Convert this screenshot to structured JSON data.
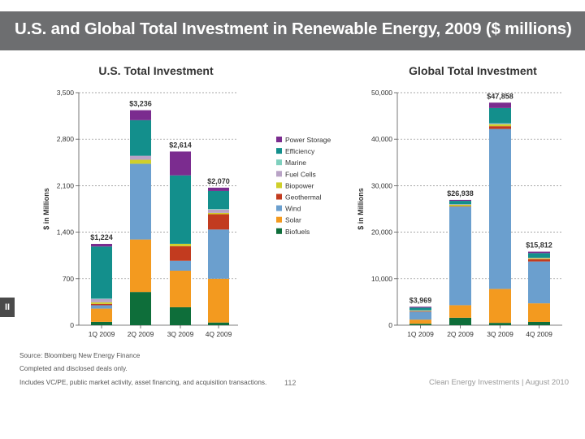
{
  "title": "U.S. and Global Total Investment in Renewable Energy, 2009 ($ millions)",
  "side_tab": "II",
  "colors": {
    "Power Storage": "#7b2c8f",
    "Efficiency": "#138f8c",
    "Marine": "#7fd0be",
    "Fuel Cells": "#b9a3c6",
    "Biopower": "#cfcf2a",
    "Geothermal": "#c23b1f",
    "Wind": "#6b9fce",
    "Solar": "#f39a1f",
    "Biofuels": "#0e6e3a"
  },
  "legend": [
    "Power Storage",
    "Efficiency",
    "Marine",
    "Fuel Cells",
    "Biopower",
    "Geothermal",
    "Wind",
    "Solar",
    "Biofuels"
  ],
  "chart_data": [
    {
      "type": "bar",
      "stacked": true,
      "title": "U.S. Total Investment",
      "ylabel": "$ in Millions",
      "ylim": [
        0,
        3500
      ],
      "yticks": [
        0,
        700,
        1400,
        2100,
        2800,
        3500
      ],
      "ytick_labels": [
        "0",
        "700",
        "1,400",
        "2,100",
        "2,800",
        "3,500"
      ],
      "categories": [
        "1Q 2009",
        "2Q 2009",
        "3Q 2009",
        "4Q 2009"
      ],
      "totals": [
        1224,
        3236,
        2614,
        2070
      ],
      "total_labels": [
        "$1,224",
        "$3,236",
        "$2,614",
        "$2,070"
      ],
      "series": [
        {
          "name": "Biofuels",
          "values": [
            50,
            500,
            270,
            40
          ]
        },
        {
          "name": "Solar",
          "values": [
            200,
            790,
            550,
            660
          ]
        },
        {
          "name": "Wind",
          "values": [
            50,
            1140,
            150,
            740
          ]
        },
        {
          "name": "Geothermal",
          "values": [
            20,
            0,
            220,
            230
          ]
        },
        {
          "name": "Biopower",
          "values": [
            25,
            60,
            35,
            20
          ]
        },
        {
          "name": "Fuel Cells",
          "values": [
            50,
            60,
            0,
            50
          ]
        },
        {
          "name": "Marine",
          "values": [
            5,
            0,
            0,
            10
          ]
        },
        {
          "name": "Efficiency",
          "values": [
            784,
            536,
            1030,
            270
          ]
        },
        {
          "name": "Power Storage",
          "values": [
            40,
            150,
            359,
            50
          ]
        }
      ]
    },
    {
      "type": "bar",
      "stacked": true,
      "title": "Global Total Investment",
      "ylabel": "$ in Millions",
      "ylim": [
        0,
        50000
      ],
      "yticks": [
        0,
        10000,
        20000,
        30000,
        40000,
        50000
      ],
      "ytick_labels": [
        "0",
        "10,000",
        "20,000",
        "30,000",
        "40,000",
        "50,000"
      ],
      "categories": [
        "1Q 2009",
        "2Q 2009",
        "3Q 2009",
        "4Q 2009"
      ],
      "totals": [
        3969,
        26938,
        47858,
        15812
      ],
      "total_labels": [
        "$3,969",
        "$26,938",
        "$47,858",
        "$15,812"
      ],
      "series": [
        {
          "name": "Biofuels",
          "values": [
            300,
            1600,
            500,
            700
          ]
        },
        {
          "name": "Solar",
          "values": [
            900,
            2700,
            7300,
            4000
          ]
        },
        {
          "name": "Wind",
          "values": [
            1700,
            21200,
            34400,
            9000
          ]
        },
        {
          "name": "Geothermal",
          "values": [
            100,
            100,
            600,
            500
          ]
        },
        {
          "name": "Biopower",
          "values": [
            100,
            300,
            400,
            200
          ]
        },
        {
          "name": "Fuel Cells",
          "values": [
            100,
            100,
            100,
            100
          ]
        },
        {
          "name": "Marine",
          "values": [
            0,
            0,
            100,
            0
          ]
        },
        {
          "name": "Efficiency",
          "values": [
            569,
            738,
            3300,
            1000
          ]
        },
        {
          "name": "Power Storage",
          "values": [
            200,
            200,
            1158,
            312
          ]
        }
      ]
    }
  ],
  "footer": {
    "source": "Source: Bloomberg New Energy Finance",
    "note1": "Completed and disclosed deals only.",
    "note2": "Includes VC/PE, public market activity, asset financing, and acquisition transactions.",
    "page": "112",
    "brand": "Clean Energy Investments  |  August 2010"
  }
}
